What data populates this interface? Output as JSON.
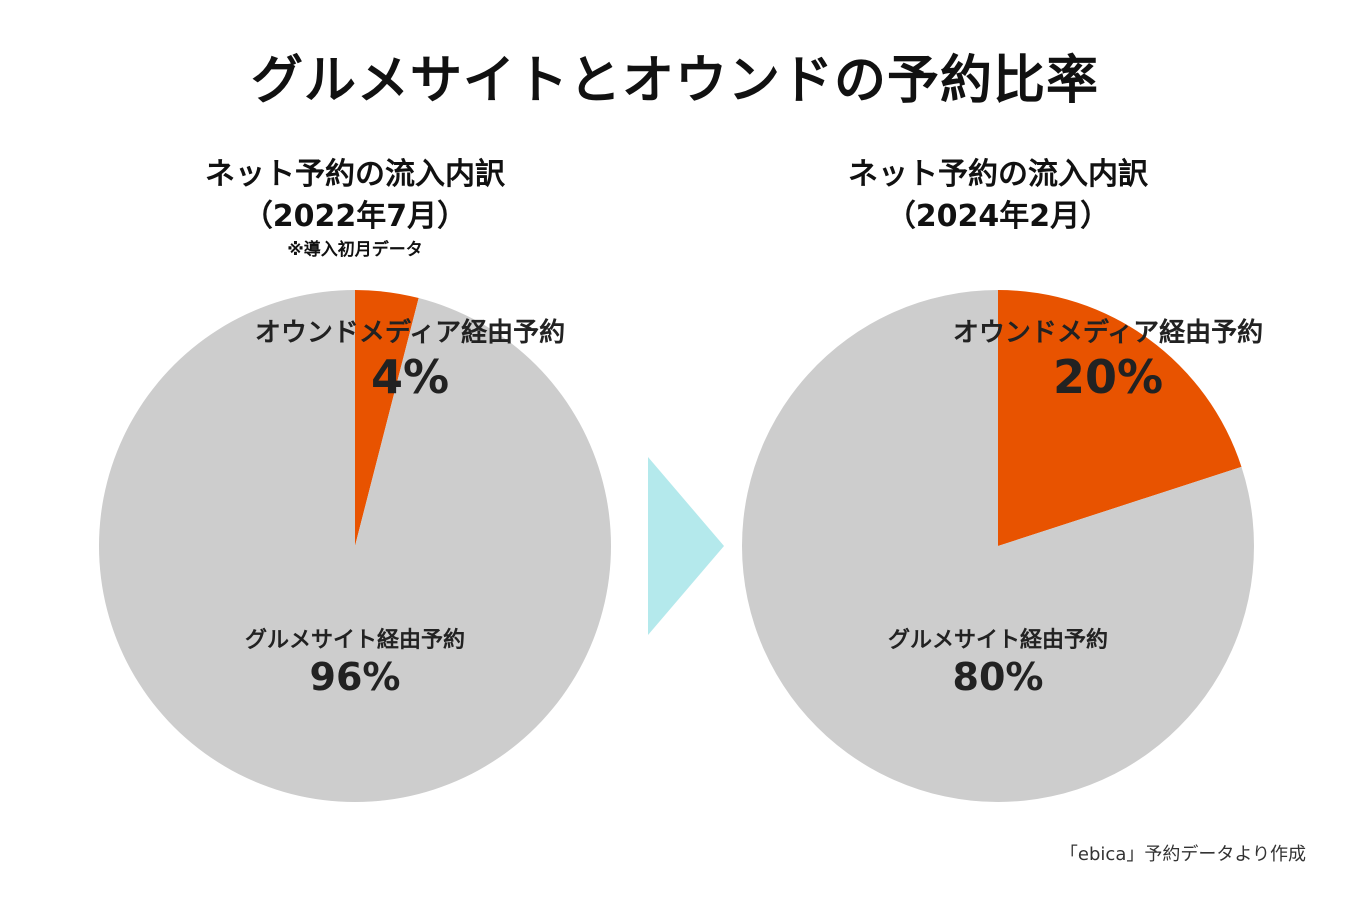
{
  "title": "グルメサイトとオウンドの予約比率",
  "colors": {
    "owned": "#E85300",
    "gourmet": "#CDCDCD",
    "arrow": "#B4E9EC"
  },
  "arrow_icon": "triangle-right",
  "chart_data": [
    {
      "type": "pie",
      "title_line1": "ネット予約の流入内訳",
      "title_line2": "（2022年7月）",
      "note": "※導入初月データ",
      "slices": [
        {
          "label": "オウンドメディア経由予約",
          "value": 4,
          "value_label": "4%"
        },
        {
          "label": "グルメサイト経由予約",
          "value": 96,
          "value_label": "96%"
        }
      ]
    },
    {
      "type": "pie",
      "title_line1": "ネット予約の流入内訳",
      "title_line2": "（2024年2月）",
      "slices": [
        {
          "label": "オウンドメディア経由予約",
          "value": 20,
          "value_label": "20%"
        },
        {
          "label": "グルメサイト経由予約",
          "value": 80,
          "value_label": "80%"
        }
      ]
    }
  ],
  "source": "「ebica」予約データより作成"
}
